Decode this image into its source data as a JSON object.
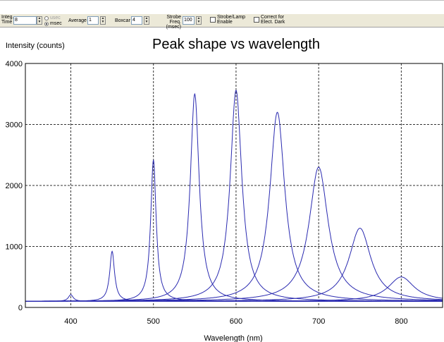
{
  "toolbar": {
    "integ_label_1": "Integ.",
    "integ_label_2": "Time",
    "integ_value": "8",
    "unit_usec": "usec",
    "unit_msec": "msec",
    "selected_unit": "msec",
    "average_label": "Average",
    "average_value": "1",
    "boxcar_label": "Boxcar",
    "boxcar_value": "4",
    "strobe_freq_label_1": "Strobe Freq.",
    "strobe_freq_label_2": "(msec)",
    "strobe_freq_value": "100",
    "strobe_lamp_label_1": "Strobe/Lamp",
    "strobe_lamp_label_2": "Enable",
    "strobe_lamp_checked": false,
    "correct_label_1": "Correct for",
    "correct_label_2": "Elect. Dark",
    "correct_checked": false
  },
  "chart_data": {
    "type": "line",
    "title": "Peak shape vs wavelength",
    "ylabel": "Intensity (counts)",
    "xlabel": "Wavelength (nm)",
    "xlim": [
      345,
      850
    ],
    "ylim": [
      0,
      4000
    ],
    "x_ticks": [
      400,
      500,
      600,
      700,
      800
    ],
    "y_ticks": [
      0,
      1000,
      2000,
      3000,
      4000
    ],
    "grid": true,
    "line_color": "#2a2ab0",
    "baseline": 100,
    "series": [
      {
        "center": 400,
        "peak": 210,
        "fwhm": 7
      },
      {
        "center": 450,
        "peak": 920,
        "fwhm": 7
      },
      {
        "center": 500,
        "peak": 2420,
        "fwhm": 8
      },
      {
        "center": 550,
        "peak": 3500,
        "fwhm": 13
      },
      {
        "center": 600,
        "peak": 3560,
        "fwhm": 17
      },
      {
        "center": 650,
        "peak": 3200,
        "fwhm": 22
      },
      {
        "center": 700,
        "peak": 2300,
        "fwhm": 28
      },
      {
        "center": 750,
        "peak": 1300,
        "fwhm": 32
      },
      {
        "center": 800,
        "peak": 500,
        "fwhm": 38
      }
    ]
  }
}
